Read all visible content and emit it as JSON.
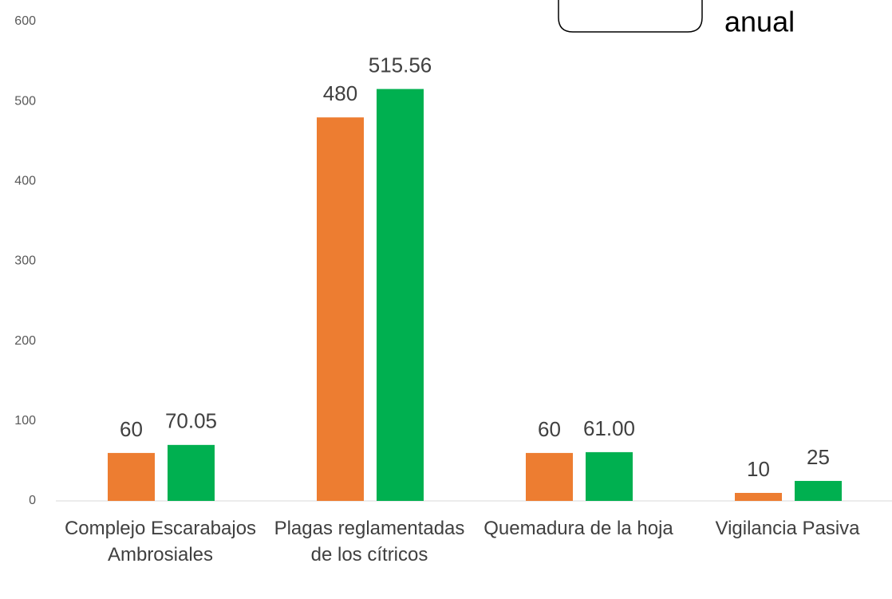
{
  "chart_data": {
    "type": "bar",
    "annotation": "anual",
    "categories": [
      "Complejo Escarabajos Ambrosiales",
      "Plagas reglamentadas de los cítricos",
      "Quemadura de la hoja",
      "Vigilancia Pasiva"
    ],
    "series": [
      {
        "color": "#ed7d31",
        "values": [
          60,
          480,
          60,
          10
        ]
      },
      {
        "color": "#00b050",
        "values": [
          70.05,
          515.56,
          61,
          25
        ],
        "value_labels": [
          "70.05",
          "515.56",
          "61.00",
          "25"
        ]
      }
    ],
    "ylim": [
      0,
      600
    ],
    "yticks": [
      0,
      100,
      200,
      300,
      400,
      500,
      600
    ]
  }
}
